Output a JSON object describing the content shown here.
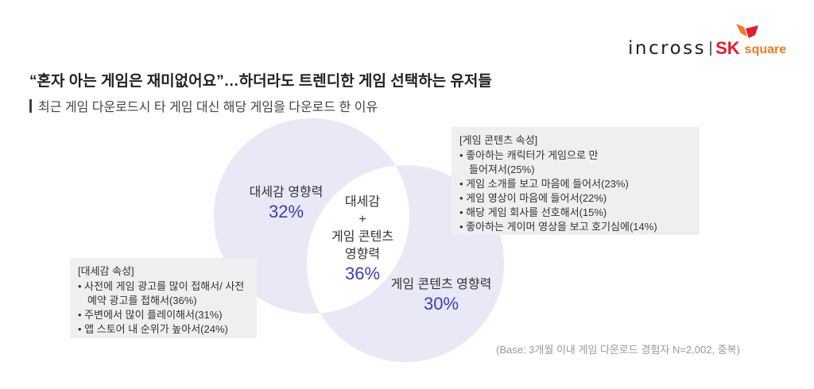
{
  "logo": {
    "brand1": "incross",
    "brand2": "SK",
    "brand3": "square",
    "colors": {
      "sk": "#e8192c",
      "square": "#f47920"
    }
  },
  "title": "“혼자 아는 게임은 재미없어요”…하더라도 트렌디한 게임 선택하는 유저들",
  "subtitle": "최근 게임 다운로드시 타 게임 대신 해당 게임을 다운로드 한 이유",
  "venn": {
    "left": {
      "label": "대세감 영향력",
      "value": "32%"
    },
    "center": {
      "line1": "대세감",
      "line2": "+",
      "line3": "게임 콘텐츠",
      "line4": "영향력",
      "value": "36%"
    },
    "right": {
      "label": "게임 콘텐츠 영향력",
      "value": "30%"
    },
    "colors": {
      "circle": "#e8e8f6",
      "value": "#3d3db8"
    }
  },
  "left_box": {
    "heading": "[대세감 속성]",
    "items": [
      "사전에 게임 광고를 많이 접해서/ 사전 예약 광고를 접해서(36%)",
      "주변에서 많이 플레이해서(31%)",
      "앱 스토어 내 순위가 높아서(24%)"
    ]
  },
  "right_box": {
    "heading": "[게임 콘텐츠 속성]",
    "items": [
      "좋아하는 캐릭터가 게임으로 만들어져서(25%)",
      "게임 소개를 보고 마음에 들어서(23%)",
      "게임 영상이 마음에 들어서(22%)",
      "해당 게임 회사를 선호해서(15%)",
      "좋아하는 게이머 영상을 보고 호기심에(14%)"
    ]
  },
  "base_note": "(Base: 3개월 이내 게임 다운로드 경험자 N=2,002, 중복)"
}
